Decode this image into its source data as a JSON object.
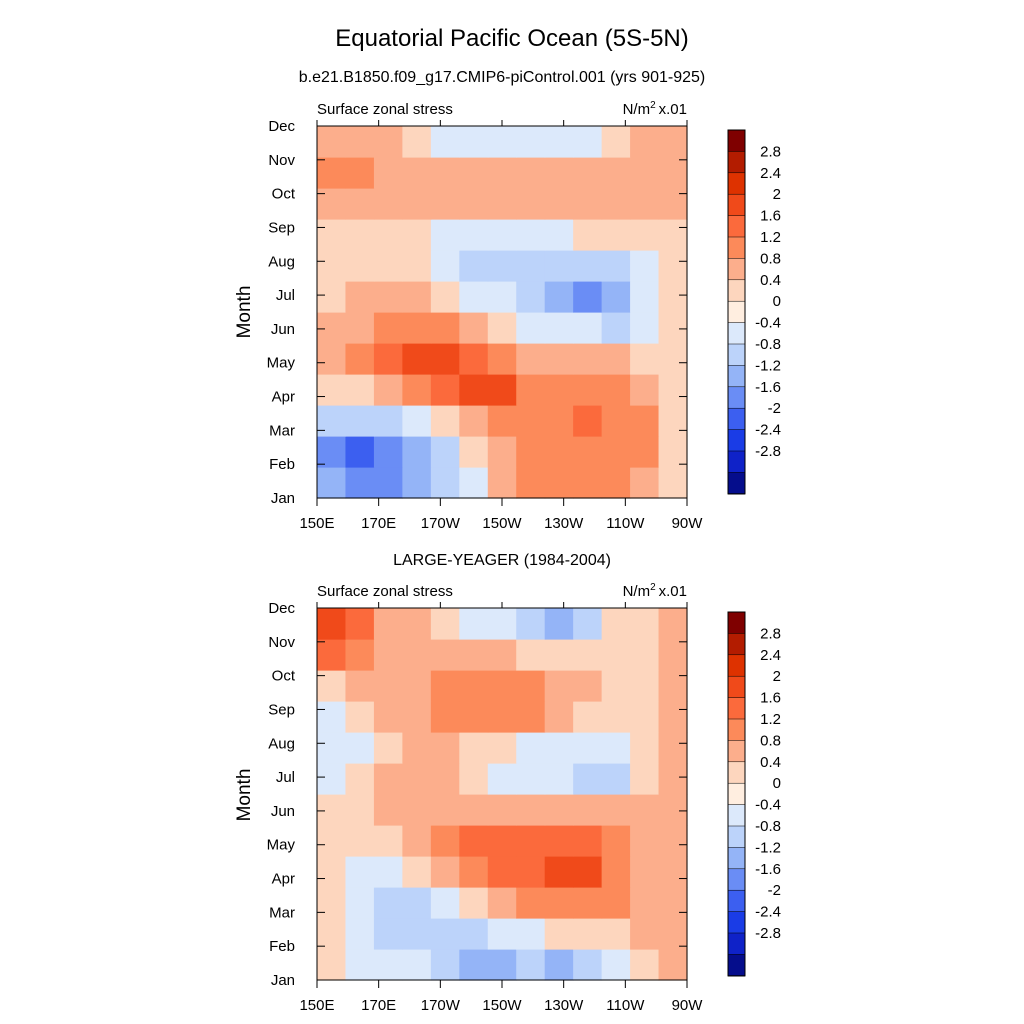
{
  "figure": {
    "title": "Equatorial Pacific Ocean (5S-5N)"
  },
  "colorbar": {
    "levels": [
      "2.8",
      "2.4",
      "2",
      "1.6",
      "1.2",
      "0.8",
      "0.4",
      "0",
      "-0.4",
      "-0.8",
      "-1.2",
      "-1.6",
      "-2",
      "-2.4",
      "-2.8"
    ],
    "colors": [
      "#7f0000",
      "#b31c00",
      "#de3200",
      "#f04a1a",
      "#fb6a3c",
      "#fc8a5a",
      "#fcae8c",
      "#fdd6be",
      "#ffeee0",
      "#dce9fb",
      "#bcd3fa",
      "#94b4f7",
      "#6a8df5",
      "#3c5ff0",
      "#1a3ce6",
      "#0f22c8",
      "#050d8c"
    ]
  },
  "chart_data": [
    {
      "type": "heatmap",
      "title": "b.e21.B1850.f09_g17.CMIP6-piControl.001 (yrs 901-925)",
      "left_label": "Surface zonal stress",
      "units_label": "N/m",
      "units_sup": "2",
      "units_scale": "x.01",
      "ylabel": "Month",
      "x_ticks": [
        "150E",
        "170E",
        "170W",
        "150W",
        "130W",
        "110W",
        "90W"
      ],
      "y_ticks": [
        "Jan",
        "Feb",
        "Mar",
        "Apr",
        "May",
        "Jun",
        "Jul",
        "Aug",
        "Sep",
        "Oct",
        "Nov",
        "Dec"
      ],
      "x_lon": [
        150,
        160,
        170,
        180,
        190,
        200,
        210,
        220,
        230,
        240,
        250,
        260,
        270
      ],
      "values": [
        [
          -1.2,
          -1.6,
          -1.6,
          -1.2,
          -0.8,
          -0.4,
          0.4,
          0.8,
          0.8,
          0.8,
          0.8,
          0.4,
          0
        ],
        [
          -1.6,
          -2.0,
          -1.6,
          -1.2,
          -0.8,
          0,
          0.4,
          0.8,
          0.8,
          0.8,
          0.8,
          0.8,
          0
        ],
        [
          -0.8,
          -0.8,
          -0.8,
          -0.4,
          0,
          0.4,
          0.8,
          0.8,
          0.8,
          1.2,
          0.8,
          0.8,
          0
        ],
        [
          0,
          0,
          0.4,
          0.8,
          1.2,
          1.6,
          1.6,
          0.8,
          0.8,
          0.8,
          0.8,
          0.4,
          0
        ],
        [
          0.4,
          0.8,
          1.2,
          1.6,
          1.6,
          1.2,
          0.8,
          0.4,
          0.4,
          0.4,
          0.4,
          0,
          0
        ],
        [
          0.4,
          0.4,
          0.8,
          0.8,
          0.8,
          0.4,
          0,
          -0.4,
          -0.4,
          -0.4,
          -0.8,
          -0.4,
          0
        ],
        [
          0,
          0.4,
          0.4,
          0.4,
          0,
          -0.4,
          -0.4,
          -0.8,
          -1.2,
          -1.6,
          -1.2,
          -0.4,
          0
        ],
        [
          0,
          0,
          0,
          0,
          -0.4,
          -0.8,
          -0.8,
          -0.8,
          -0.8,
          -0.8,
          -0.8,
          -0.4,
          0
        ],
        [
          0,
          0,
          0,
          0,
          -0.4,
          -0.4,
          -0.4,
          -0.4,
          -0.4,
          0,
          0,
          0,
          0
        ],
        [
          0.4,
          0.4,
          0.4,
          0.4,
          0.4,
          0.4,
          0.4,
          0.4,
          0.4,
          0.4,
          0.4,
          0.4,
          0.4
        ],
        [
          0.8,
          0.8,
          0.4,
          0.4,
          0.4,
          0.4,
          0.4,
          0.4,
          0.4,
          0.4,
          0.4,
          0.4,
          0.4
        ],
        [
          0.4,
          0.4,
          0.4,
          0,
          -0.4,
          -0.4,
          -0.4,
          -0.4,
          -0.4,
          -0.4,
          0,
          0.4,
          0.4
        ]
      ]
    },
    {
      "type": "heatmap",
      "title": "LARGE-YEAGER (1984-2004)",
      "left_label": "Surface zonal stress",
      "units_label": "N/m",
      "units_sup": "2",
      "units_scale": "x.01",
      "ylabel": "Month",
      "x_ticks": [
        "150E",
        "170E",
        "170W",
        "150W",
        "130W",
        "110W",
        "90W"
      ],
      "y_ticks": [
        "Jan",
        "Feb",
        "Mar",
        "Apr",
        "May",
        "Jun",
        "Jul",
        "Aug",
        "Sep",
        "Oct",
        "Nov",
        "Dec"
      ],
      "x_lon": [
        150,
        160,
        170,
        180,
        190,
        200,
        210,
        220,
        230,
        240,
        250,
        260,
        270
      ],
      "values": [
        [
          0,
          -0.4,
          -0.4,
          -0.4,
          -0.8,
          -1.2,
          -1.2,
          -0.8,
          -1.2,
          -0.8,
          -0.4,
          0,
          0.4
        ],
        [
          0,
          -0.4,
          -0.8,
          -0.8,
          -0.8,
          -0.8,
          -0.4,
          -0.4,
          0,
          0,
          0,
          0.4,
          0.4
        ],
        [
          0,
          -0.4,
          -0.8,
          -0.8,
          -0.4,
          0,
          0.4,
          0.8,
          0.8,
          0.8,
          0.8,
          0.4,
          0.4
        ],
        [
          0,
          -0.4,
          -0.4,
          0,
          0.4,
          0.8,
          1.2,
          1.2,
          1.6,
          1.6,
          0.8,
          0.4,
          0.4
        ],
        [
          0,
          0,
          0,
          0.4,
          0.8,
          1.2,
          1.2,
          1.2,
          1.2,
          1.2,
          0.8,
          0.4,
          0.4
        ],
        [
          0,
          0,
          0.4,
          0.4,
          0.4,
          0.4,
          0.4,
          0.4,
          0.4,
          0.4,
          0.4,
          0.4,
          0.4
        ],
        [
          -0.4,
          0,
          0.4,
          0.4,
          0.4,
          0,
          -0.4,
          -0.4,
          -0.4,
          -0.8,
          -0.8,
          0,
          0.4
        ],
        [
          -0.4,
          -0.4,
          0,
          0.4,
          0.4,
          0,
          0,
          -0.4,
          -0.4,
          -0.4,
          -0.4,
          0,
          0.4
        ],
        [
          -0.4,
          0,
          0.4,
          0.4,
          0.8,
          0.8,
          0.8,
          0.8,
          0.4,
          0,
          0,
          0,
          0.4
        ],
        [
          0,
          0.4,
          0.4,
          0.4,
          0.8,
          0.8,
          0.8,
          0.8,
          0.4,
          0.4,
          0,
          0,
          0.4
        ],
        [
          1.2,
          0.8,
          0.4,
          0.4,
          0.4,
          0.4,
          0.4,
          0,
          0,
          0,
          0,
          0,
          0.4
        ],
        [
          1.6,
          1.2,
          0.4,
          0.4,
          0,
          -0.4,
          -0.4,
          -0.8,
          -1.2,
          -0.8,
          0,
          0,
          0.4
        ]
      ]
    }
  ]
}
